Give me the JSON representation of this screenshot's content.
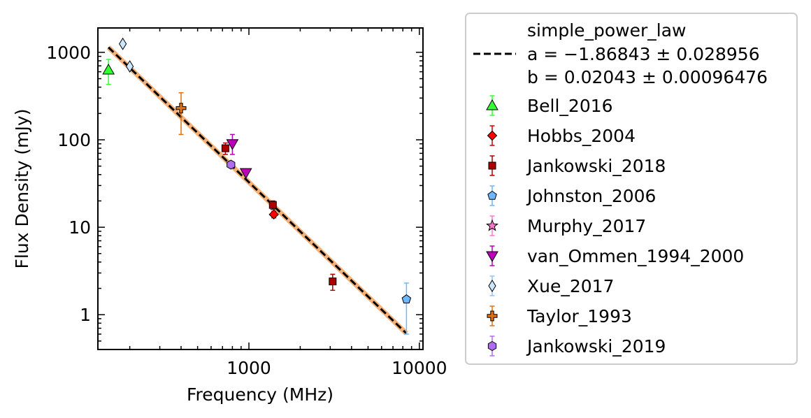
{
  "chart_data": {
    "type": "scatter",
    "xlabel": "Frequency (MHz)",
    "ylabel": "Flux Density (mJy)",
    "xscale": "log",
    "yscale": "log",
    "xlim": [
      130,
      10500
    ],
    "ylim": [
      0.4,
      1900
    ],
    "x_ticks": [
      {
        "value": 1000,
        "label": "1000"
      },
      {
        "value": 10000,
        "label": "10000"
      }
    ],
    "y_ticks": [
      {
        "value": 1,
        "label": "1"
      },
      {
        "value": 10,
        "label": "10"
      },
      {
        "value": 100,
        "label": "100"
      },
      {
        "value": 1000,
        "label": "1000"
      }
    ],
    "legend_position": "outside-right",
    "fit": {
      "name": "simple_power_law",
      "lines": [
        "a = −1.86843 ± 0.028956",
        "b = 0.02043 ± 0.00096476"
      ],
      "x_range": [
        150,
        8400
      ],
      "y_range": [
        1140,
        0.61
      ],
      "color": "#000000",
      "band_color": "#f4a460"
    },
    "series": [
      {
        "name": "Bell_2016",
        "marker": "triangle-up",
        "color": "#33ff33",
        "error_color": "#33ff33",
        "points": [
          {
            "x": 150,
            "y": 630,
            "yerr_low": 430,
            "yerr_high": 830
          }
        ]
      },
      {
        "name": "Hobbs_2004",
        "marker": "diamond",
        "color": "#ff0000",
        "error_color": "#cc0000",
        "points": [
          {
            "x": 1400,
            "y": 14,
            "yerr_low": 12.8,
            "yerr_high": 15.2
          }
        ]
      },
      {
        "name": "Jankowski_2018",
        "marker": "square",
        "color": "#aa0000",
        "error_color": "#aa0000",
        "points": [
          {
            "x": 728,
            "y": 80,
            "yerr_low": 68,
            "yerr_high": 92
          },
          {
            "x": 1382,
            "y": 18,
            "yerr_low": 16,
            "yerr_high": 20
          },
          {
            "x": 3100,
            "y": 2.4,
            "yerr_low": 1.9,
            "yerr_high": 2.9
          }
        ]
      },
      {
        "name": "Johnston_2006",
        "marker": "pentagon",
        "color": "#6eb6ff",
        "error_color": "#6eb6ff",
        "points": [
          {
            "x": 8400,
            "y": 1.5,
            "yerr_low": 0.6,
            "yerr_high": 2.3
          }
        ]
      },
      {
        "name": "Murphy_2017",
        "marker": "star",
        "color": "#ff77cc",
        "error_color": "#ff77cc",
        "points": []
      },
      {
        "name": "van_Ommen_1994_2000",
        "marker": "triangle-down",
        "color": "#bb00bb",
        "error_color": "#bb00bb",
        "points": [
          {
            "x": 800,
            "y": 90,
            "yerr_low": 68,
            "yerr_high": 115
          },
          {
            "x": 960,
            "y": 42,
            "yerr_low": 40,
            "yerr_high": 44
          }
        ]
      },
      {
        "name": "Xue_2017",
        "marker": "thin-diamond",
        "color": "#cce6ff",
        "error_color": "#8fc3f5",
        "points": [
          {
            "x": 182,
            "y": 1250
          },
          {
            "x": 200,
            "y": 690
          }
        ]
      },
      {
        "name": "Taylor_1993",
        "marker": "plus",
        "color": "#e07010",
        "error_color": "#e07010",
        "points": [
          {
            "x": 400,
            "y": 230,
            "yerr_low": 115,
            "yerr_high": 345
          }
        ]
      },
      {
        "name": "Jankowski_2019",
        "marker": "hexagon",
        "color": "#b06cf0",
        "error_color": "#b06cf0",
        "points": [
          {
            "x": 784,
            "y": 52,
            "yerr_low": 48,
            "yerr_high": 56
          }
        ]
      }
    ]
  }
}
